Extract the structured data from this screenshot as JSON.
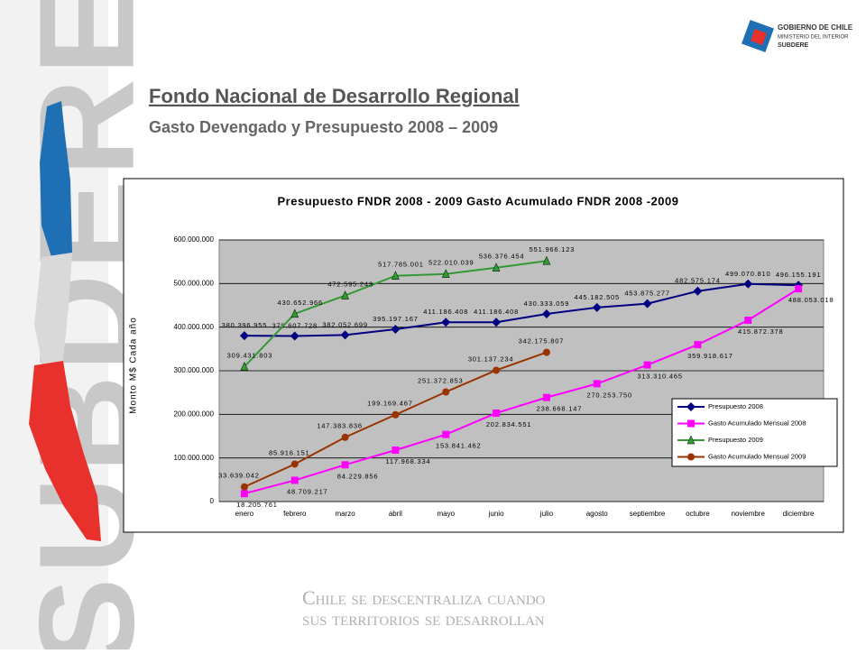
{
  "slide": {
    "title": "Fondo Nacional de Desarrollo Regional",
    "subtitle": "Gasto Devengado y Presupuesto 2008 – 2009",
    "side_text": "SUBDERE",
    "logo": [
      "GOBIERNO DE CHILE",
      "MINISTERIO DEL INTERIOR",
      "SUBDERE"
    ],
    "footer": [
      "Chile se descentraliza cuando",
      "sus territorios se desarrollan"
    ]
  },
  "chart_data": {
    "type": "line",
    "title": "Presupuesto FNDR 2008 - 2009 Gasto Acumulado FNDR 2008 -2009",
    "y_label": "Monto M$ Cada año",
    "categories": [
      "enero",
      "febrero",
      "marzo",
      "abril",
      "mayo",
      "junio",
      "julio",
      "agosto",
      "septiembre",
      "octubre",
      "noviembre",
      "diciembre"
    ],
    "ylim": [
      0,
      600000000
    ],
    "yticks": [
      0,
      {
        "value": 100000000,
        "label": "100.000.000"
      },
      {
        "value": 200000000,
        "label": "200.000.000"
      },
      {
        "value": 300000000,
        "label": "300.000.000"
      },
      {
        "value": 400000000,
        "label": "400.000.000"
      },
      {
        "value": 500000000,
        "label": "500.000.000"
      },
      {
        "value": 600000000,
        "label": "600.000.000"
      }
    ],
    "grid": true,
    "legend": "right",
    "series": [
      {
        "name": "Presupuesto 2008",
        "color": "#000080",
        "marker": "diamond",
        "values": [
          380396955,
          379607728,
          382052699,
          395197167,
          411186408,
          411186408,
          430333059,
          445182505,
          453875277,
          482575174,
          499070810,
          496155191
        ],
        "value_labels": [
          "380.396.955",
          "379.607.728",
          "382.052.699",
          "395.197.167",
          "411.186.408",
          "411.186.408",
          "430.333.059",
          "445.182.505",
          "453.875.277",
          "482.575.174",
          "499.070.810",
          "496.155.191"
        ]
      },
      {
        "name": "Gasto Acumulado Mensual 2008",
        "color": "#ff00ff",
        "marker": "square",
        "values": [
          18205761,
          48709217,
          84229856,
          117968334,
          153841462,
          202834551,
          238668147,
          270253750,
          313310465,
          359918617,
          415872378,
          488053018
        ],
        "value_labels": [
          "18.205.761",
          "48.709.217",
          "84.229.856",
          "117.968.334",
          "153.841.462",
          "202.834.551",
          "238.668.147",
          "270.253.750",
          "313.310.465",
          "359.918.617",
          "415.872.378",
          "488.053.018"
        ]
      },
      {
        "name": "Presupuesto 2009",
        "color": "#339933",
        "marker": "triangle",
        "values": [
          309431803,
          430652966,
          472595243,
          517785001,
          522010039,
          536376454,
          551966123,
          null,
          null,
          null,
          null,
          null
        ],
        "value_labels": [
          "309.431.803",
          "430.652.966",
          "472.595.243",
          "517.785.001",
          "522.010.039",
          "536.376.454",
          "551.966.123",
          null,
          null,
          null,
          null,
          null
        ]
      },
      {
        "name": "Gasto Acumulado Mensual 2009",
        "color": "#993300",
        "marker": "circle",
        "values": [
          33639042,
          85916151,
          147383836,
          199169467,
          251372853,
          301137234,
          342175807,
          null,
          null,
          null,
          null,
          null
        ],
        "value_labels": [
          "33.639.042",
          "85.916.151",
          "147.383.836",
          "199.169.467",
          "251.372.853",
          "301.137.234",
          "342.175.807",
          null,
          null,
          null,
          null,
          null
        ]
      }
    ]
  }
}
